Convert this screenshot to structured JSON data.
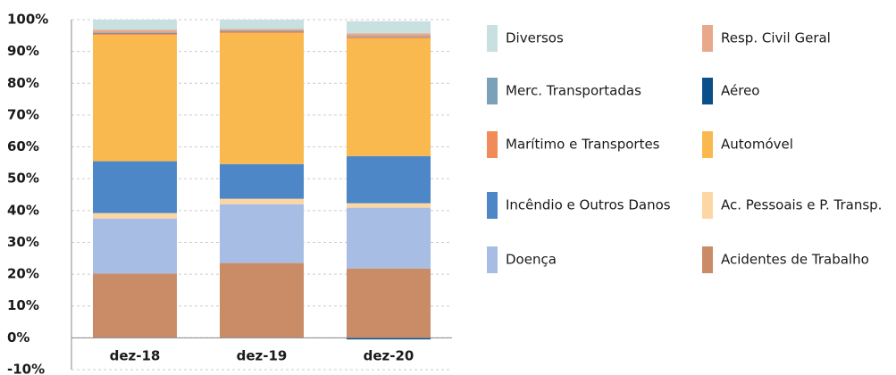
{
  "chart_data": {
    "type": "stacked_bar",
    "categories": [
      "dez-18",
      "dez-19",
      "dez-20"
    ],
    "series": [
      {
        "name": "Acidentes de Trabalho",
        "color": "#c98c67",
        "values": [
          20.2,
          23.5,
          21.8
        ]
      },
      {
        "name": "Doença",
        "color": "#a8bde3",
        "values": [
          17.3,
          18.5,
          19.1
        ]
      },
      {
        "name": "Ac. Pessoais e P. Transp.",
        "color": "#fcd7a4",
        "values": [
          1.7,
          1.7,
          1.4
        ]
      },
      {
        "name": "Incêndio e Outros Danos",
        "color": "#4d87c7",
        "values": [
          16.3,
          10.9,
          14.8
        ]
      },
      {
        "name": "Automóvel",
        "color": "#f9b94f",
        "values": [
          39.7,
          41.2,
          37.0
        ]
      },
      {
        "name": "Marítimo e Transportes",
        "color": "#f28b5a",
        "values": [
          0.5,
          0.4,
          0.5
        ]
      },
      {
        "name": "Aéreo",
        "color": "#0b4f8a",
        "values": [
          0.1,
          0.1,
          -0.5
        ]
      },
      {
        "name": "Merc. Transportadas",
        "color": "#7ba1b8",
        "values": [
          0.2,
          0.2,
          0.3
        ]
      },
      {
        "name": "Resp. Civil Geral",
        "color": "#e8a98a",
        "values": [
          0.8,
          0.6,
          0.8
        ]
      },
      {
        "name": "Diversos",
        "color": "#c8e0e0",
        "values": [
          3.2,
          2.9,
          3.8
        ]
      }
    ],
    "ylim": [
      -10,
      100
    ],
    "yticks": [
      {
        "value": -10,
        "label": "-10%"
      },
      {
        "value": 0,
        "label": "0%"
      },
      {
        "value": 10,
        "label": "10%"
      },
      {
        "value": 20,
        "label": "20%"
      },
      {
        "value": 30,
        "label": "30%"
      },
      {
        "value": 40,
        "label": "40%"
      },
      {
        "value": 50,
        "label": "50%"
      },
      {
        "value": 60,
        "label": "60%"
      },
      {
        "value": 70,
        "label": "70%"
      },
      {
        "value": 80,
        "label": "80%"
      },
      {
        "value": 90,
        "label": "90%"
      },
      {
        "value": 100,
        "label": "100%"
      }
    ],
    "grid": true
  }
}
